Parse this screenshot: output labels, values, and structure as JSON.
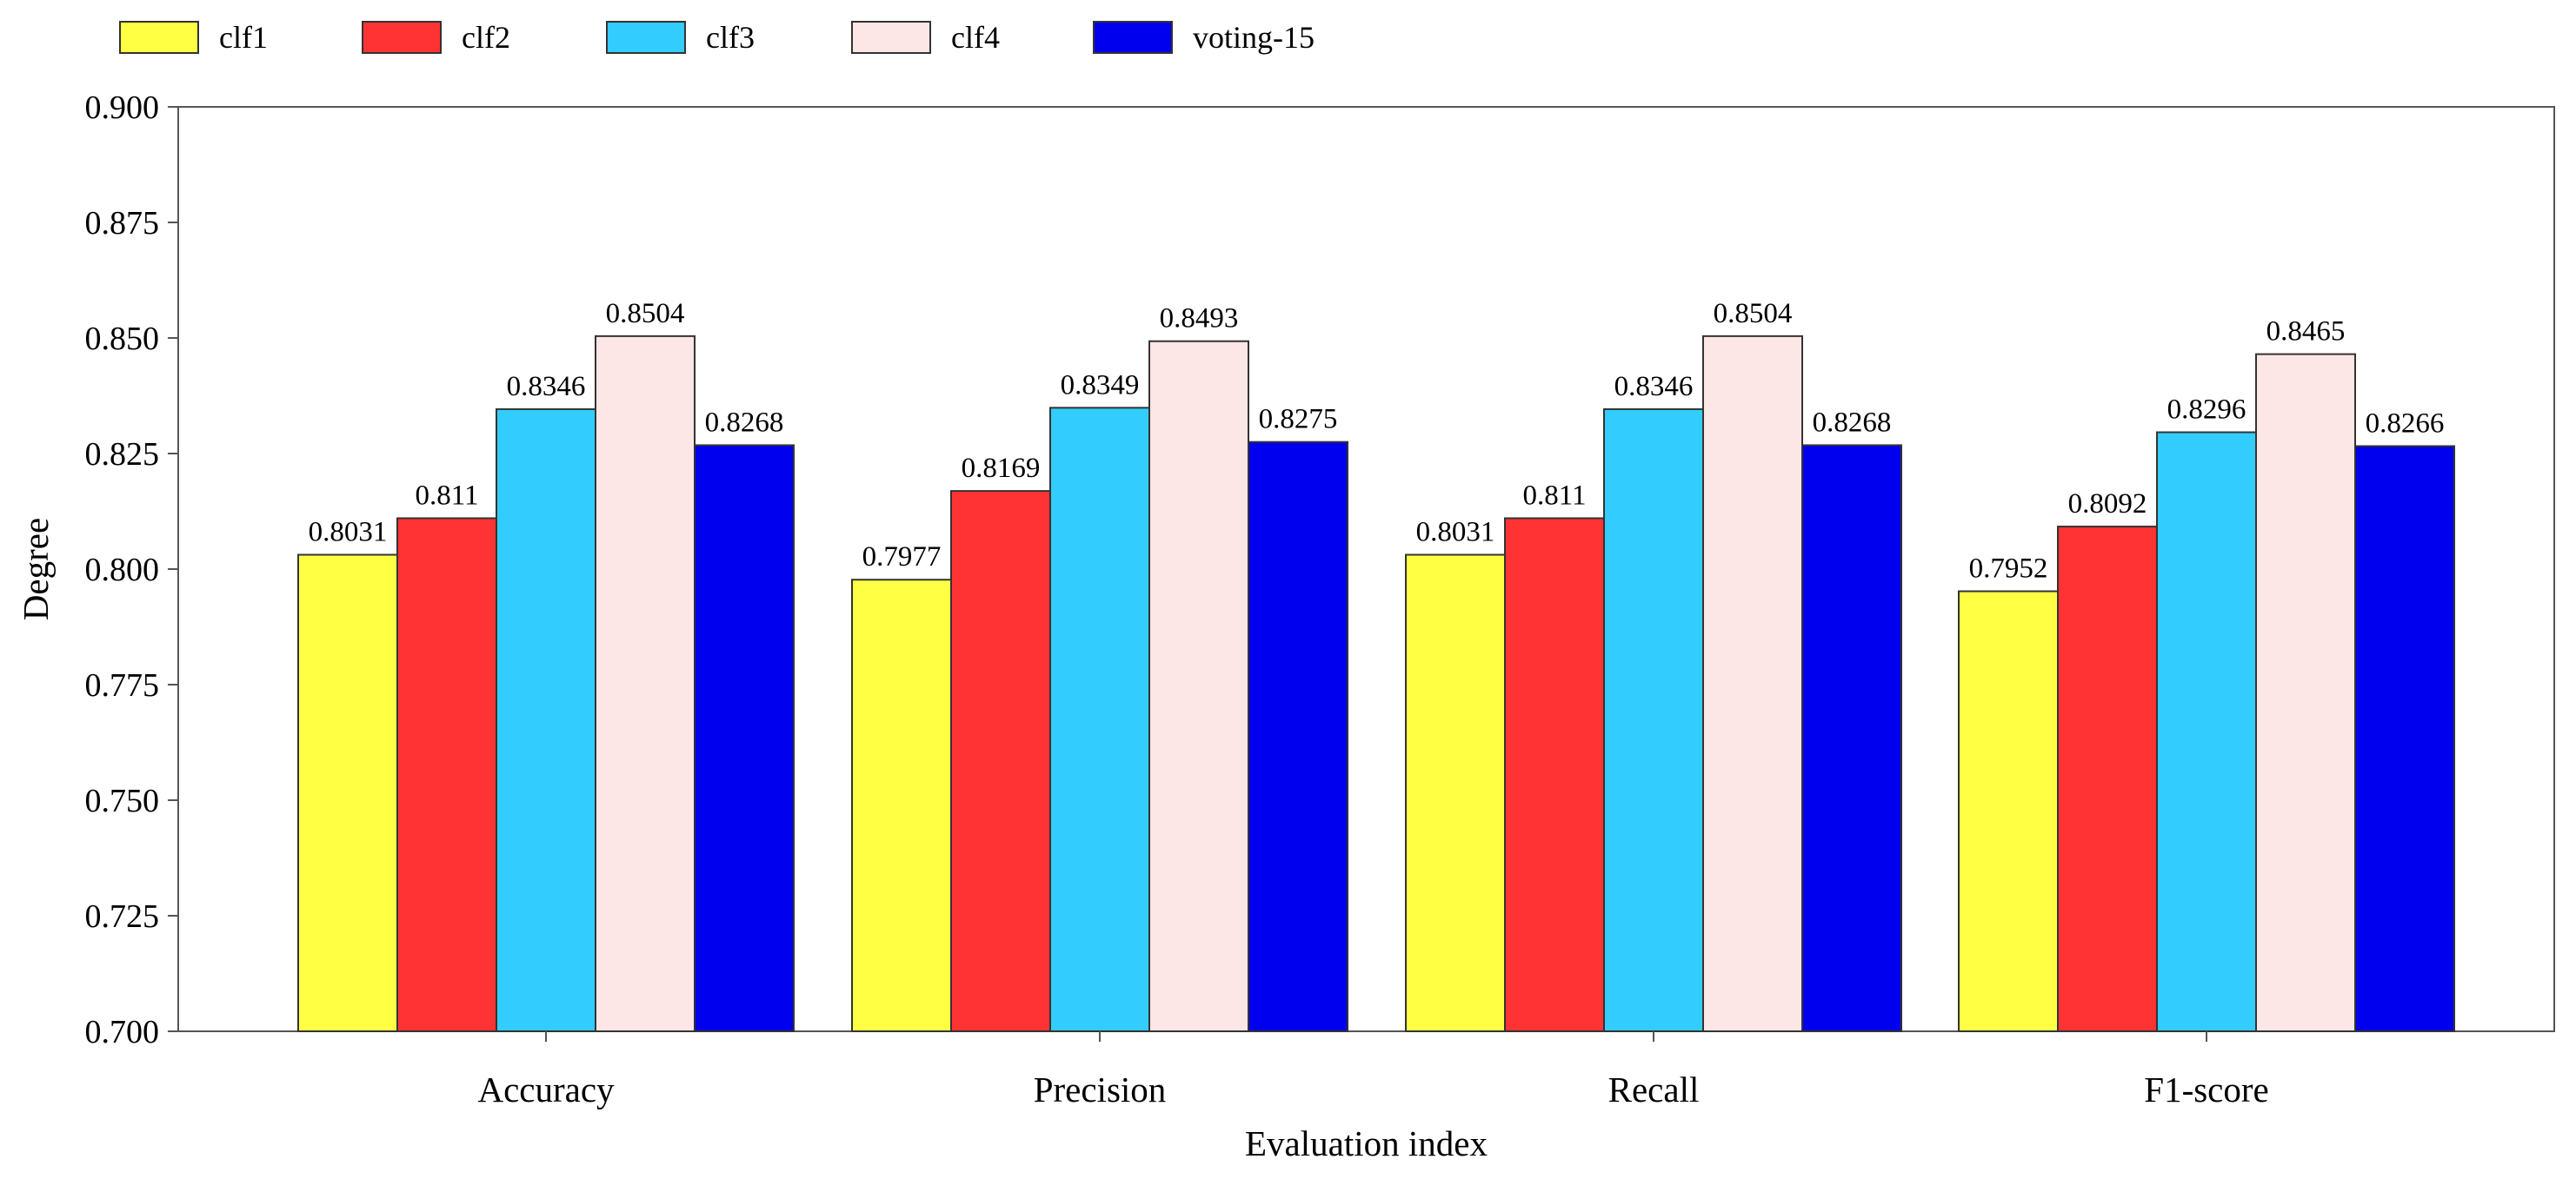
{
  "chart_data": {
    "type": "bar",
    "title": "",
    "xlabel": "Evaluation index",
    "ylabel": "Degree",
    "ylim": [
      0.7,
      0.9
    ],
    "yticks": [
      "0.700",
      "0.725",
      "0.750",
      "0.775",
      "0.800",
      "0.825",
      "0.850",
      "0.875",
      "0.900"
    ],
    "grid": false,
    "legend_position": "top-left, above plot",
    "categories": [
      "Accuracy",
      "Precision",
      "Recall",
      "F1-score"
    ],
    "series": [
      {
        "name": "clf1",
        "color": "#ffff44",
        "values": [
          0.8031,
          0.7977,
          0.8031,
          0.7952
        ],
        "labels": [
          "0.8031",
          "0.7977",
          "0.8031",
          "0.7952"
        ]
      },
      {
        "name": "clf2",
        "color": "#ff3333",
        "values": [
          0.811,
          0.8169,
          0.811,
          0.8092
        ],
        "labels": [
          "0.811",
          "0.8169",
          "0.811",
          "0.8092"
        ]
      },
      {
        "name": "clf3",
        "color": "#33ccff",
        "values": [
          0.8346,
          0.8349,
          0.8346,
          0.8296
        ],
        "labels": [
          "0.8346",
          "0.8349",
          "0.8346",
          "0.8296"
        ]
      },
      {
        "name": "clf4",
        "color": "#fde6e6",
        "values": [
          0.8504,
          0.8493,
          0.8504,
          0.8465
        ],
        "labels": [
          "0.8504",
          "0.8493",
          "0.8504",
          "0.8465"
        ]
      },
      {
        "name": "voting-15",
        "color": "#0000ee",
        "values": [
          0.8268,
          0.8275,
          0.8268,
          0.8266
        ],
        "labels": [
          "0.8268",
          "0.8275",
          "0.8268",
          "0.8266"
        ]
      }
    ]
  }
}
